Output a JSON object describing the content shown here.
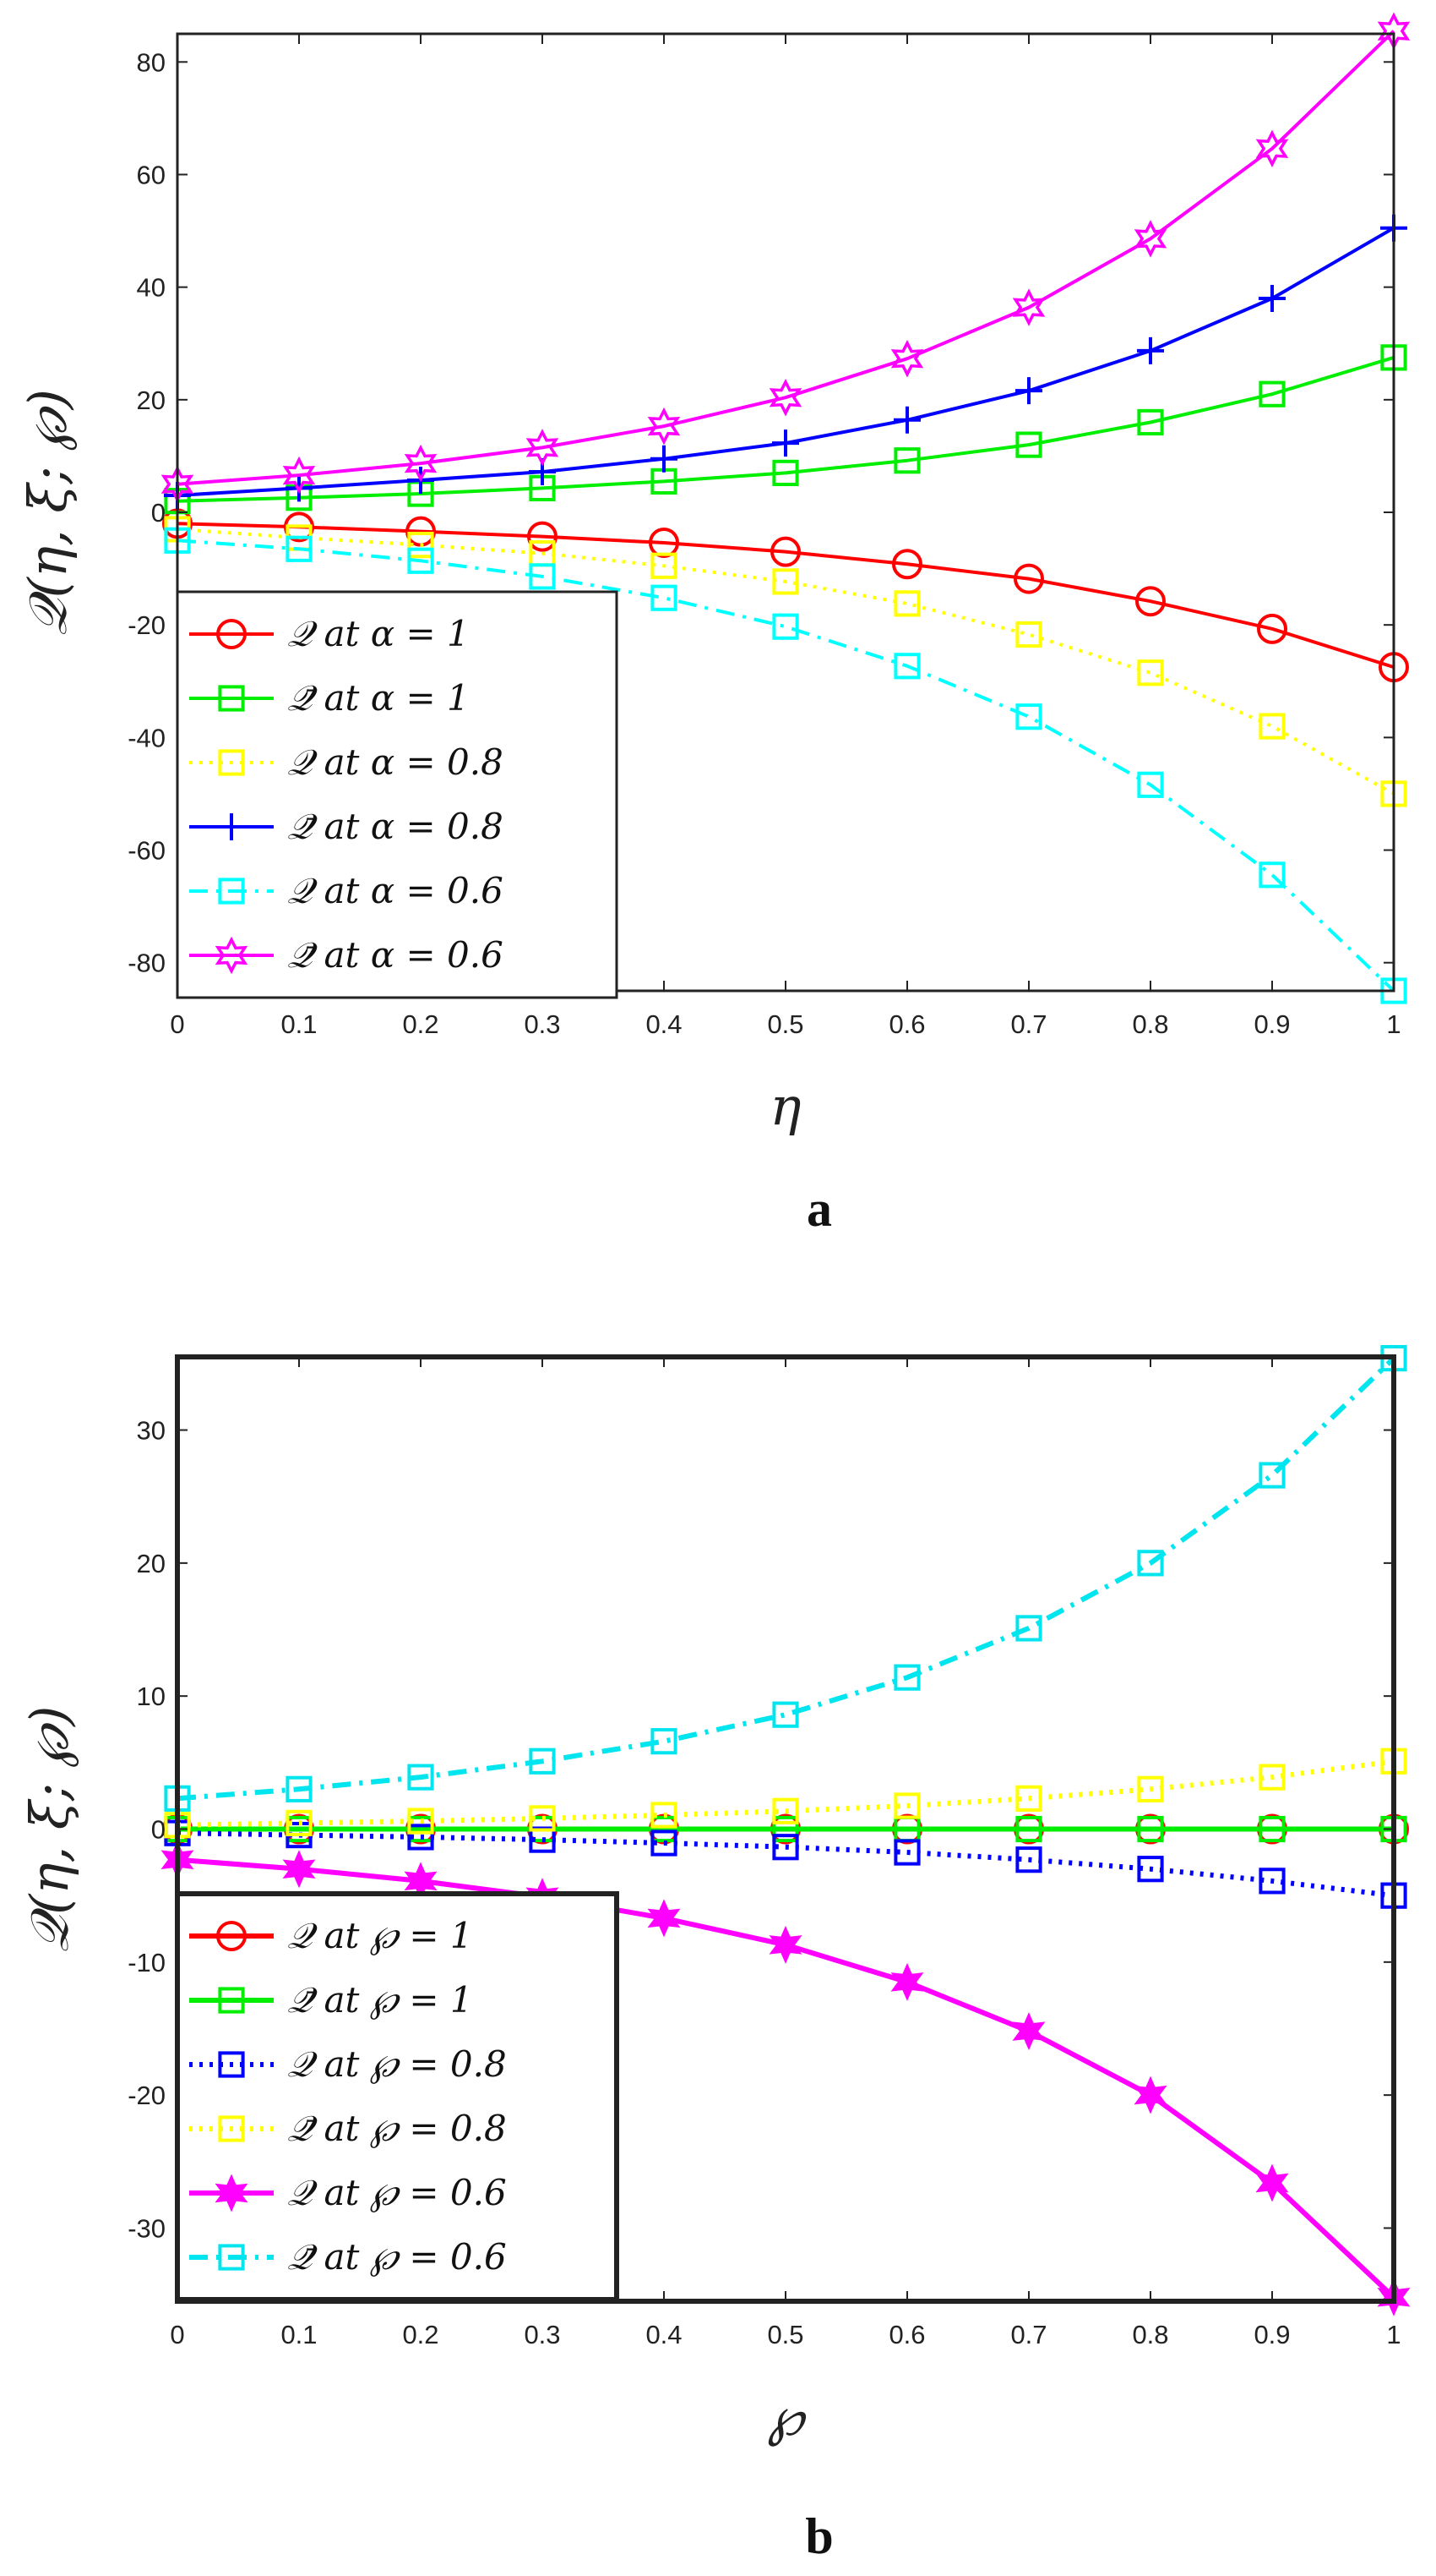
{
  "chart_data": [
    {
      "panel_label": "a",
      "type": "line",
      "xlabel": "η",
      "ylabel": "𝒬(η, ξ; ℘)",
      "xlim": [
        0,
        1
      ],
      "ylim": [
        -85,
        85
      ],
      "x_ticks": [
        "0",
        "0.1",
        "0.2",
        "0.3",
        "0.4",
        "0.5",
        "0.6",
        "0.7",
        "0.8",
        "0.9",
        "1"
      ],
      "y_ticks": [
        "80",
        "60",
        "40",
        "20",
        "0",
        "-20",
        "-40",
        "-60",
        "-80"
      ],
      "x": [
        0,
        0.1,
        0.2,
        0.3,
        0.4,
        0.5,
        0.6,
        0.7,
        0.8,
        0.9,
        1
      ],
      "legend_placement": "bottom-left",
      "series": [
        {
          "name": "𝒬 at α = 1",
          "color": "#ff0000",
          "marker": "circle",
          "line": "solid",
          "values": [
            -2,
            -2.6,
            -3.4,
            -4.3,
            -5.4,
            -7.0,
            -9.2,
            -11.8,
            -15.8,
            -20.7,
            -27.5
          ]
        },
        {
          "name": "𝒬̄ at α = 1",
          "color": "#00ee00",
          "marker": "square",
          "line": "solid",
          "values": [
            2,
            2.6,
            3.3,
            4.3,
            5.5,
            7.0,
            9.2,
            12.0,
            16.0,
            21.0,
            27.5
          ]
        },
        {
          "name": "𝒬 at α = 0.8",
          "color": "#ffff00",
          "marker": "square",
          "line": "dotted",
          "values": [
            -3,
            -4.5,
            -5.8,
            -7.3,
            -9.5,
            -12.3,
            -16.2,
            -21.7,
            -28.5,
            -38.0,
            -50.0
          ]
        },
        {
          "name": "𝒬̄ at α = 0.8",
          "color": "#0000ff",
          "marker": "plus",
          "line": "solid",
          "values": [
            3,
            4.3,
            5.7,
            7.2,
            9.5,
            12.3,
            16.4,
            21.6,
            28.7,
            38.0,
            50.5
          ]
        },
        {
          "name": "𝒬 at α = 0.6",
          "color": "#00ffff",
          "marker": "square",
          "line": "dashdot",
          "values": [
            -5,
            -6.5,
            -8.6,
            -11.4,
            -15.2,
            -20.3,
            -27.3,
            -36.3,
            -48.4,
            -64.4,
            -85.0
          ]
        },
        {
          "name": "𝒬̄ at α = 0.6",
          "color": "#ff00ff",
          "marker": "hexagram",
          "line": "solid",
          "values": [
            5,
            6.6,
            8.7,
            11.5,
            15.3,
            20.4,
            27.3,
            36.4,
            48.6,
            64.6,
            85.5
          ]
        }
      ]
    },
    {
      "panel_label": "b",
      "type": "line",
      "xlabel": "℘",
      "ylabel": "𝒬(η, ξ; ℘)",
      "xlim": [
        0,
        1
      ],
      "ylim": [
        -35.5,
        35.5
      ],
      "x_ticks": [
        "0",
        "0.1",
        "0.2",
        "0.3",
        "0.4",
        "0.5",
        "0.6",
        "0.7",
        "0.8",
        "0.9",
        "1"
      ],
      "y_ticks": [
        "30",
        "20",
        "10",
        "0",
        "-10",
        "-20",
        "-30"
      ],
      "x": [
        0,
        0.1,
        0.2,
        0.3,
        0.4,
        0.5,
        0.6,
        0.7,
        0.8,
        0.9,
        1
      ],
      "legend_placement": "bottom-left",
      "series": [
        {
          "name": "𝒬 at ℘ = 1",
          "color": "#ff0000",
          "marker": "circle",
          "line": "solid",
          "values": [
            0,
            0,
            0,
            0,
            0,
            0,
            0,
            0,
            0,
            0,
            0
          ]
        },
        {
          "name": "𝒬̄ at ℘ = 1",
          "color": "#00ee00",
          "marker": "square",
          "line": "solid",
          "values": [
            0,
            0,
            0,
            0,
            0,
            0,
            0,
            0,
            0,
            0,
            0
          ]
        },
        {
          "name": "𝒬 at ℘ = 0.8",
          "color": "#0000ff",
          "marker": "square",
          "line": "dotted",
          "values": [
            -0.3,
            -0.45,
            -0.6,
            -0.8,
            -1.05,
            -1.35,
            -1.75,
            -2.3,
            -3.0,
            -3.9,
            -5.0
          ]
        },
        {
          "name": "𝒬̄ at ℘ = 0.8",
          "color": "#ffff00",
          "marker": "square",
          "line": "dotted",
          "values": [
            0.3,
            0.45,
            0.6,
            0.8,
            1.05,
            1.35,
            1.75,
            2.3,
            3.0,
            3.9,
            5.1
          ]
        },
        {
          "name": "𝒬 at ℘ = 0.6",
          "color": "#ff00ff",
          "marker": "hexagram-filled",
          "line": "solid",
          "values": [
            -2.3,
            -3.0,
            -3.9,
            -5.1,
            -6.7,
            -8.7,
            -11.5,
            -15.2,
            -20.0,
            -26.6,
            -35.2
          ]
        },
        {
          "name": "𝒬̄ at ℘ = 0.6",
          "color": "#00e5ee",
          "marker": "square",
          "line": "dashdot",
          "values": [
            2.3,
            3.0,
            3.9,
            5.1,
            6.6,
            8.6,
            11.4,
            15.1,
            20.0,
            26.6,
            35.4
          ]
        }
      ]
    }
  ]
}
